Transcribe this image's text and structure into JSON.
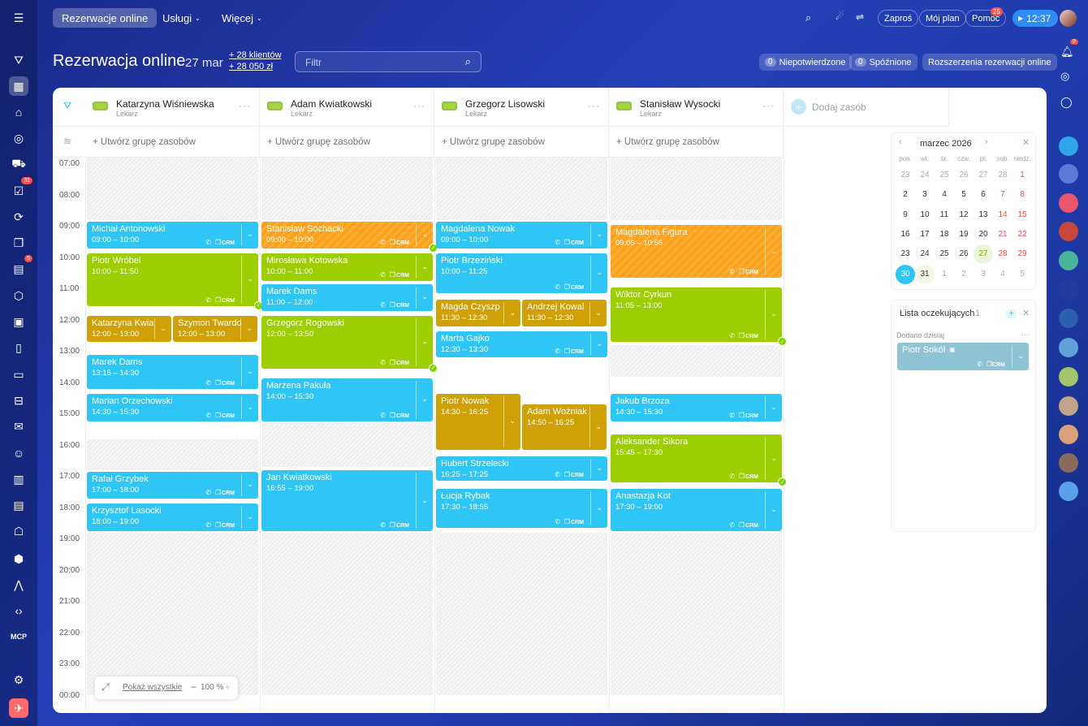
{
  "colors": {
    "accent": "#2fc6f6",
    "blue": "#2fc6f6",
    "green": "#9dcf00",
    "olive": "#d0a106",
    "orange": "#fba21b"
  },
  "topbar": {
    "tabs": [
      "Rezerwacje online",
      "Usługi",
      "Więcej"
    ],
    "invite": "Zaproś",
    "myplan": "Mój plan",
    "help": "Pomoc",
    "help_badge": "25",
    "timer": "12:37",
    "notif_badge": "9"
  },
  "sidebar": {
    "badges": [
      "31",
      "5"
    ],
    "mcp": "MCP"
  },
  "header": {
    "title": "Rezerwacja online",
    "date": "27 mar",
    "clients": "+ 28 klientów",
    "revenue": "+ 28 050 zł",
    "filter_placeholder": "Filtr",
    "unconfirmed_count": "0",
    "unconfirmed": "Niepotwierdzone",
    "late_count": "0",
    "late": "Spóźnione",
    "extensions": "Rozszerzenia rezerwacji online"
  },
  "resources": [
    {
      "name": "Katarzyna Wiśniewska",
      "role": "Lekarz"
    },
    {
      "name": "Adam Kwiatkowski",
      "role": "Lekarz"
    },
    {
      "name": "Grzegorz Lisowski",
      "role": "Lekarz"
    },
    {
      "name": "Stanisław Wysocki",
      "role": "Lekarz"
    }
  ],
  "add_resource": "Dodaj zasób",
  "create_group": "+ Utwórz grupę zasobów",
  "times": [
    "07:00",
    "08:00",
    "09:00",
    "10:00",
    "11:00",
    "12:00",
    "13:00",
    "14:00",
    "15:00",
    "16:00",
    "17:00",
    "18:00",
    "19:00",
    "20:00",
    "21:00",
    "22:00",
    "23:00",
    "00:00"
  ],
  "crm": "CRM",
  "events": [
    {
      "name": "Michał Antonowski",
      "time": "09:00 – 10:00"
    },
    {
      "name": "Piotr Wróbel",
      "time": "10:00 – 11:50"
    },
    {
      "name": "Katarzyna Kwia",
      "time": "12:00 – 13:00"
    },
    {
      "name": "Szymon Twardo",
      "time": "12:00 – 13:00"
    },
    {
      "name": "Marek Dams",
      "time": "13:15 – 14:30"
    },
    {
      "name": "Marian Orzechowski",
      "time": "14:30 – 15:30"
    },
    {
      "name": "Rafał Grzybek",
      "time": "17:00 – 18:00"
    },
    {
      "name": "Krzysztof Lasocki",
      "time": "18:00 – 19:00"
    },
    {
      "name": "Stanisław Sochacki",
      "time": "09:00 – 10:00"
    },
    {
      "name": "Mirosława Kotowska",
      "time": "10:00 – 11:00"
    },
    {
      "name": "Marek Dams",
      "time": "11:00 – 12:00"
    },
    {
      "name": "Grzegorz Rogowski",
      "time": "12:00 – 13:50"
    },
    {
      "name": "Marzena Pakuła",
      "time": "14:00 – 15:30"
    },
    {
      "name": "Jan Kwiatkowski",
      "time": "16:55 – 19:00"
    },
    {
      "name": "Magdalena Nowak",
      "time": "09:00 – 10:00"
    },
    {
      "name": "Piotr Brzeziński",
      "time": "10:00 – 11:25"
    },
    {
      "name": "Magda Czyszp",
      "time": "11:30 – 12:30"
    },
    {
      "name": "Andrzej Kowal",
      "time": "11:30 – 12:30"
    },
    {
      "name": "Marta Gajko",
      "time": "12:30 – 13:30"
    },
    {
      "name": "Piotr Nowak",
      "time": "14:30 – 16:25"
    },
    {
      "name": "Adam Woźniak",
      "time": "14:50 – 16:25"
    },
    {
      "name": "Hubert Strzelecki",
      "time": "16:25 – 17:25"
    },
    {
      "name": "Łucja Rybak",
      "time": "17:30 – 18:55"
    },
    {
      "name": "Magdalena Figura",
      "time": "09:05 – 10:55"
    },
    {
      "name": "Wiktor Cyrkun",
      "time": "11:05 – 13:00"
    },
    {
      "name": "Jakub Brzoza",
      "time": "14:30 – 15:30"
    },
    {
      "name": "Aleksander Sikora",
      "time": "15:45 – 17:30"
    },
    {
      "name": "Anastazja Kot",
      "time": "17:30 – 19:00"
    }
  ],
  "calendar": {
    "month": "marzec 2026",
    "weekdays": [
      "pon.",
      "wt.",
      "śr.",
      "czw.",
      "pt.",
      "sob.",
      "niedz."
    ],
    "days": [
      "23",
      "24",
      "25",
      "26",
      "27",
      "28",
      "1",
      "2",
      "3",
      "4",
      "5",
      "6",
      "7",
      "8",
      "9",
      "10",
      "11",
      "12",
      "13",
      "14",
      "15",
      "16",
      "17",
      "18",
      "19",
      "20",
      "21",
      "22",
      "23",
      "24",
      "25",
      "26",
      "27",
      "28",
      "29",
      "30",
      "31",
      "1",
      "2",
      "3",
      "4",
      "5"
    ]
  },
  "waitlist": {
    "title": "Lista oczekujących",
    "count": "1",
    "added_today": "Dodano dzisiaj",
    "item": "Piotr Sokół"
  },
  "zoom": {
    "show_all": "Pokaż wszystkie",
    "level": "100 %"
  }
}
